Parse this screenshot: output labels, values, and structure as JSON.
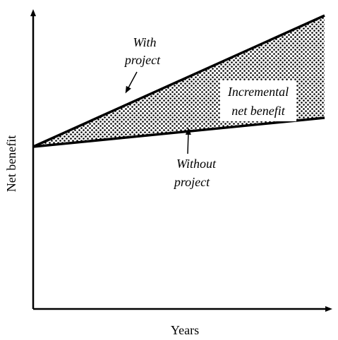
{
  "labels": {
    "with_project": [
      "With",
      "project"
    ],
    "incremental": [
      "Incremental",
      "net benefit"
    ],
    "without_project": [
      "Without",
      "project"
    ],
    "y_axis": "Net benefit",
    "x_axis": "Years"
  }
}
